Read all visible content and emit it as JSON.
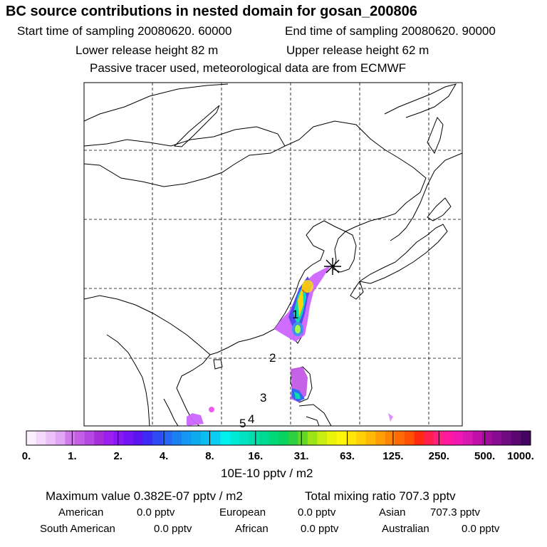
{
  "header": {
    "title": "BC  source contributions in nested domain for gosan_200806",
    "start_time": "Start time of sampling 20080620. 60000",
    "end_time": "End time of sampling 20080620. 90000",
    "lower_height": "Lower release height   82 m",
    "upper_height": "Upper release height   62 m",
    "tracer_note": "Passive tracer used, meteorological data are from ECMWF"
  },
  "map": {
    "region_labels": [
      "1",
      "2",
      "3",
      "4",
      "5"
    ],
    "receptor_marker": "Gosan station marker",
    "colors": {
      "low": "#cc66ff",
      "mid": "#00ccaa",
      "high": "#ffaa00",
      "peak": "#ff2200"
    }
  },
  "colorbar": {
    "ticks": [
      "0.",
      "1.",
      "2.",
      "4.",
      "8.",
      "16.",
      "31.",
      "63.",
      "125.",
      "250.",
      "500.",
      "1000."
    ],
    "colors": [
      "#fbeefe",
      "#f4d8fb",
      "#ebc0f7",
      "#e0a5f3",
      "#d07ae9",
      "#c35ee5",
      "#b547e2",
      "#a52ed8",
      "#9a1ff0",
      "#8a17f5",
      "#7414f5",
      "#5b13f0",
      "#3d2af4",
      "#2f49f4",
      "#2566f4",
      "#1a80f0",
      "#1496f2",
      "#0eaaf0",
      "#0bbdf0",
      "#08ccf0",
      "#00f0ee",
      "#00e8d6",
      "#00e2c0",
      "#00ddaa",
      "#00d992",
      "#00d878",
      "#06d45e",
      "#2ed043",
      "#64d828",
      "#9ae418",
      "#c8ee10",
      "#e8f40c",
      "#fff70a",
      "#ffe508",
      "#ffd006",
      "#ffb805",
      "#ff9e05",
      "#ff8404",
      "#ff6a04",
      "#ff5004",
      "#ff2a10",
      "#ff2050",
      "#ff2080",
      "#ff18a0",
      "#f018b0",
      "#d818b0",
      "#c010a8",
      "#a00c9a",
      "#880c90",
      "#700a80",
      "#5a0870",
      "#420560"
    ],
    "unit": "10E-10 pptv / m2"
  },
  "summary": {
    "max_value": "Maximum value  0.382E-07 pptv / m2",
    "total_mixing": "Total mixing ratio      707.3 pptv",
    "american_label": "American",
    "american_value": "0.0 pptv",
    "european_label": "European",
    "european_value": "0.0 pptv",
    "asian_label": "Asian",
    "asian_value": "707.3 pptv",
    "south_american_label": "South American",
    "south_american_value": "0.0 pptv",
    "african_label": "African",
    "african_value": "0.0 pptv",
    "australian_label": "Australian",
    "australian_value": "0.0 pptv"
  }
}
